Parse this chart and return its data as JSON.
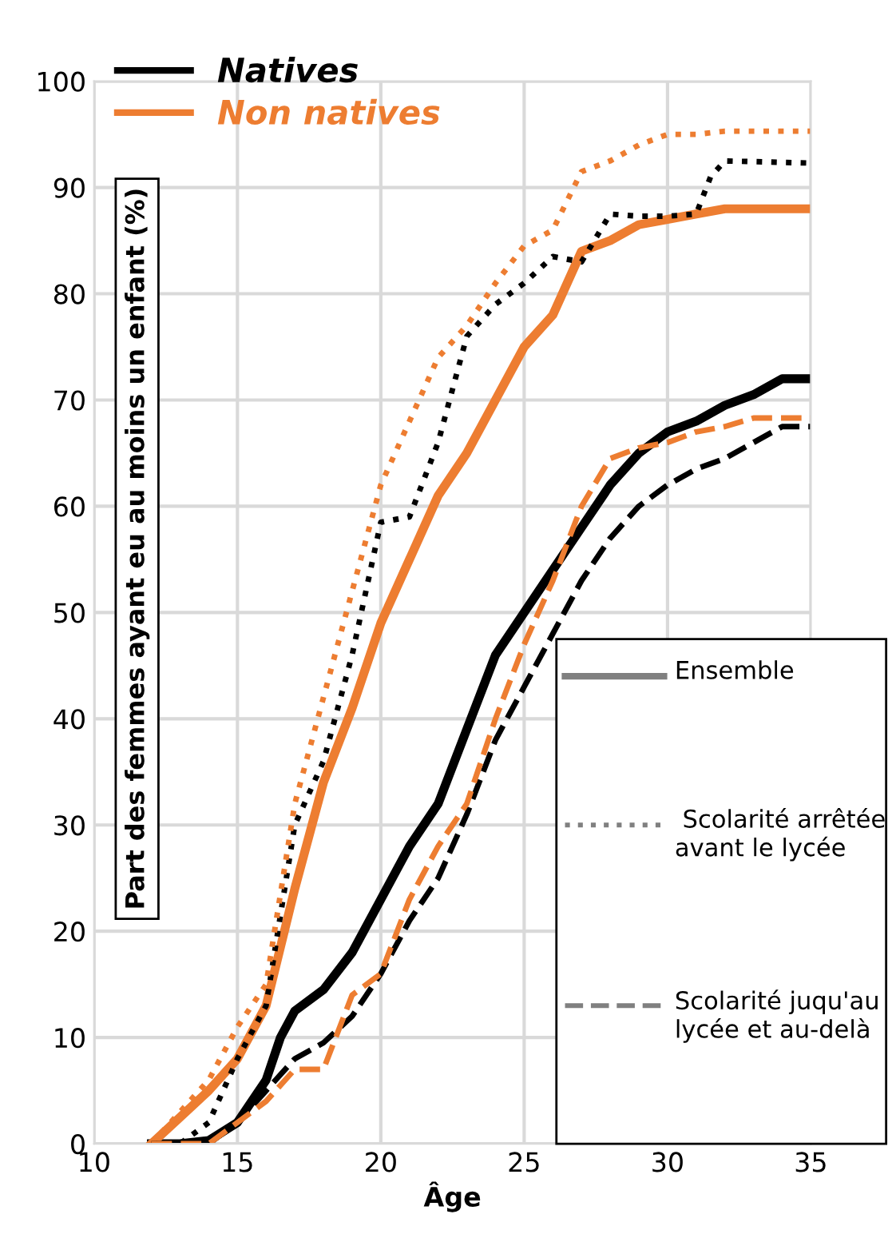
{
  "chart_data": {
    "type": "line",
    "xlabel": "Âge",
    "ylabel": "Part des femmes ayant eu au moins un enfant (%)",
    "xlim": [
      10,
      35
    ],
    "ylim": [
      0,
      100
    ],
    "xticks": [
      10,
      15,
      20,
      25,
      30,
      35
    ],
    "yticks": [
      0,
      10,
      20,
      30,
      40,
      50,
      60,
      70,
      80,
      90,
      100
    ],
    "grid": true,
    "legend": "top left",
    "marker": "none",
    "annotations": [
      "Ensemble",
      " Scolarité arrêtée avant le lycée",
      "Scolarité juqu'au lycée et au-delà"
    ],
    "series": [
      {
        "name": "Natives",
        "color": "#000000",
        "line_style": "solid",
        "x": [
          12,
          13,
          14,
          15,
          16,
          16.5,
          17,
          18,
          19,
          20,
          21,
          22,
          23,
          24,
          25,
          26,
          27,
          28,
          29,
          30,
          31,
          32,
          33,
          34,
          35
        ],
        "values": [
          0,
          0,
          0.3,
          2,
          6,
          10,
          12.5,
          14.5,
          18,
          23,
          28,
          32,
          39,
          46,
          50,
          54,
          58,
          62,
          65,
          67,
          68,
          69.5,
          70.5,
          72,
          72
        ]
      },
      {
        "name": "Non natives",
        "color": "#ed7d31",
        "line_style": "solid",
        "x": [
          12,
          13,
          14,
          15,
          16,
          17,
          18,
          19,
          20,
          21,
          22,
          23,
          24,
          25,
          26,
          27,
          28,
          29,
          30,
          31,
          32,
          35
        ],
        "values": [
          0,
          2.5,
          5,
          8,
          13,
          24,
          34,
          41,
          49,
          55,
          61,
          65,
          70,
          75,
          78,
          84,
          85,
          86.5,
          87,
          87.5,
          88,
          88
        ]
      },
      {
        "color": "#000000",
        "line_style": "dotted",
        "x": [
          12,
          13,
          14,
          15,
          16,
          17,
          18,
          19,
          20,
          21,
          22,
          23,
          24,
          25,
          26,
          27,
          28,
          29,
          30,
          31,
          31.5,
          32,
          35
        ],
        "values": [
          0,
          0,
          2,
          8,
          13,
          30,
          36,
          46,
          58.5,
          59,
          66,
          76,
          79,
          81,
          83.5,
          83,
          87.5,
          87.3,
          87.3,
          87.5,
          91,
          92.5,
          92.3
        ]
      },
      {
        "color": "#ed7d31",
        "line_style": "dotted",
        "x": [
          12,
          13,
          14,
          15,
          16,
          17,
          18,
          19,
          20,
          21,
          22,
          23,
          24,
          25,
          26,
          27,
          28,
          29,
          30,
          31,
          32,
          35
        ],
        "values": [
          0,
          3,
          6,
          11,
          15,
          32,
          42,
          52,
          62,
          68,
          74,
          77,
          81,
          84.5,
          86,
          91.5,
          92.5,
          94,
          95,
          95,
          95.3,
          95.3
        ]
      },
      {
        "color": "#000000",
        "line_style": "dashed",
        "x": [
          12,
          13,
          14,
          15,
          16,
          17,
          18,
          19,
          20,
          21,
          22,
          23,
          24,
          25,
          26,
          27,
          28,
          29,
          30,
          31,
          32,
          33,
          34,
          35
        ],
        "values": [
          0,
          0,
          0,
          2,
          5,
          8,
          9.5,
          12,
          16,
          21,
          25,
          31,
          38,
          43,
          48,
          53,
          57,
          60,
          62,
          63.5,
          64.5,
          66,
          67.5,
          67.5
        ]
      },
      {
        "color": "#ed7d31",
        "line_style": "dashed",
        "x": [
          12,
          13,
          14,
          15,
          16,
          17,
          18,
          19,
          20,
          21,
          22,
          23,
          24,
          25,
          26,
          27,
          28,
          29,
          30,
          31,
          32,
          33,
          35
        ],
        "values": [
          0,
          0,
          0,
          2,
          4,
          7,
          7,
          14,
          16,
          23,
          28,
          32,
          40,
          47,
          53,
          60,
          64.5,
          65.5,
          66,
          67,
          67.5,
          68.3,
          68.3
        ]
      }
    ]
  }
}
